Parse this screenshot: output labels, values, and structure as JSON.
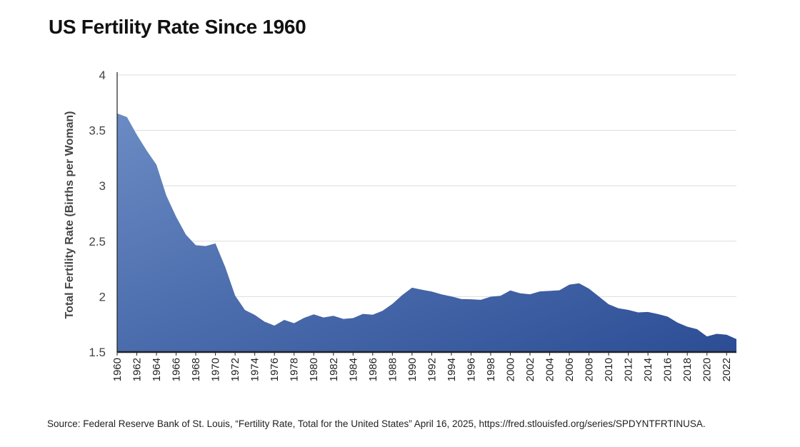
{
  "chart_data": {
    "type": "area",
    "title": "US Fertility Rate Since 1960",
    "xlabel": "",
    "ylabel": "Total Fertility Rate (Births per Woman)",
    "ylim": [
      1.5,
      4
    ],
    "yticks": [
      "1.5",
      "2",
      "2.5",
      "3",
      "3.5",
      "4"
    ],
    "xlim": [
      1960,
      2023
    ],
    "xticks": [
      "1960",
      "1962",
      "1964",
      "1966",
      "1968",
      "1970",
      "1972",
      "1974",
      "1976",
      "1978",
      "1980",
      "1982",
      "1984",
      "1986",
      "1988",
      "1990",
      "1992",
      "1994",
      "1996",
      "1998",
      "2000",
      "2002",
      "2004",
      "2006",
      "2008",
      "2010",
      "2012",
      "2014",
      "2016",
      "2018",
      "2020",
      "2022"
    ],
    "grid": true,
    "series": [
      {
        "name": "Total Fertility Rate",
        "x": [
          1960,
          1961,
          1962,
          1963,
          1964,
          1965,
          1966,
          1967,
          1968,
          1969,
          1970,
          1971,
          1972,
          1973,
          1974,
          1975,
          1976,
          1977,
          1978,
          1979,
          1980,
          1981,
          1982,
          1983,
          1984,
          1985,
          1986,
          1987,
          1988,
          1989,
          1990,
          1991,
          1992,
          1993,
          1994,
          1995,
          1996,
          1997,
          1998,
          1999,
          2000,
          2001,
          2002,
          2003,
          2004,
          2005,
          2006,
          2007,
          2008,
          2009,
          2010,
          2011,
          2012,
          2013,
          2014,
          2015,
          2016,
          2017,
          2018,
          2019,
          2020,
          2021,
          2022,
          2023
        ],
        "values": [
          3.654,
          3.62,
          3.461,
          3.319,
          3.19,
          2.913,
          2.721,
          2.558,
          2.464,
          2.456,
          2.48,
          2.266,
          2.01,
          1.879,
          1.835,
          1.774,
          1.738,
          1.79,
          1.76,
          1.808,
          1.84,
          1.812,
          1.827,
          1.799,
          1.806,
          1.844,
          1.837,
          1.872,
          1.934,
          2.014,
          2.081,
          2.062,
          2.046,
          2.02,
          2.002,
          1.978,
          1.976,
          1.971,
          1.999,
          2.007,
          2.056,
          2.03,
          2.021,
          2.047,
          2.052,
          2.057,
          2.108,
          2.12,
          2.072,
          2.002,
          1.931,
          1.895,
          1.88,
          1.858,
          1.862,
          1.843,
          1.82,
          1.766,
          1.729,
          1.706,
          1.641,
          1.664,
          1.656,
          1.617
        ]
      }
    ],
    "colors": {
      "fill_top": "#6a8bc3",
      "fill_bottom": "#2c4d95",
      "grid": "#dddddd",
      "axis": "#222222"
    }
  },
  "footer": {
    "source": "Source: Federal Reserve Bank of St. Louis, “Fertility Rate, Total for the United States” April 16, 2025, https://fred.stlouisfed.org/series/SPDYNTFRTINUSA."
  }
}
